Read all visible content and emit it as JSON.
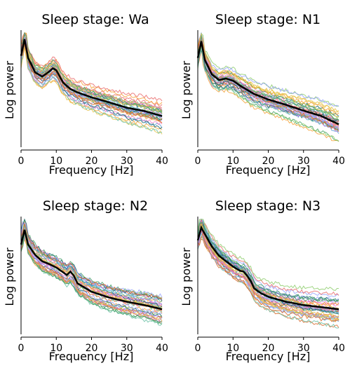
{
  "figure": {
    "colors": [
      "#f4a23a",
      "#5aa0d8",
      "#ea6f6f",
      "#b97fe0",
      "#8fce6f",
      "#f27fc4",
      "#1f6b73",
      "#6fc3a8",
      "#e6c34a",
      "#9aa6ff",
      "#d96a2b",
      "#48a36a"
    ]
  },
  "chart_data": [
    {
      "type": "line",
      "title": "Sleep stage: Wa",
      "xlabel": "Frequency [Hz]",
      "ylabel": "Log power",
      "xlim": [
        0,
        40
      ],
      "ylim": [
        -1.7,
        1.05
      ],
      "xticks": [
        0,
        10,
        20,
        30,
        40
      ],
      "yticks_visible": false,
      "grid": false,
      "series": [
        {
          "x": [
            0,
            1,
            2,
            4,
            6,
            8,
            9,
            10,
            12,
            14,
            16,
            20,
            25,
            30,
            35,
            40
          ],
          "values": [
            0.5,
            0.9,
            0.45,
            0.1,
            0.0,
            0.12,
            0.2,
            0.15,
            -0.15,
            -0.3,
            -0.38,
            -0.5,
            -0.62,
            -0.75,
            -0.83,
            -0.95
          ],
          "color": "#000000"
        }
      ]
    },
    {
      "type": "line",
      "title": "Sleep stage: N1",
      "xlabel": "Frequency [Hz]",
      "ylabel": "Log power",
      "xlim": [
        0,
        40
      ],
      "ylim": [
        -1.7,
        1.05
      ],
      "xticks": [
        0,
        10,
        20,
        30,
        40
      ],
      "yticks_visible": false,
      "grid": false,
      "series": [
        {
          "x": [
            0,
            1,
            2,
            4,
            6,
            8,
            10,
            12,
            14,
            16,
            20,
            25,
            30,
            35,
            40
          ],
          "values": [
            0.45,
            0.85,
            0.4,
            0.05,
            -0.08,
            -0.05,
            -0.1,
            -0.22,
            -0.32,
            -0.42,
            -0.55,
            -0.68,
            -0.82,
            -0.95,
            -1.15
          ],
          "color": "#000000"
        }
      ]
    },
    {
      "type": "line",
      "title": "Sleep stage: N2",
      "xlabel": "Frequency [Hz]",
      "ylabel": "Log power",
      "xlim": [
        0,
        40
      ],
      "ylim": [
        -1.7,
        1.05
      ],
      "xticks": [
        0,
        10,
        20,
        30,
        40
      ],
      "yticks_visible": false,
      "grid": false,
      "series": [
        {
          "x": [
            0,
            1,
            2,
            4,
            6,
            8,
            10,
            12,
            13,
            14,
            15,
            16,
            18,
            20,
            25,
            30,
            35,
            40
          ],
          "values": [
            0.45,
            0.8,
            0.45,
            0.2,
            0.05,
            -0.02,
            -0.1,
            -0.22,
            -0.28,
            -0.2,
            -0.3,
            -0.48,
            -0.58,
            -0.68,
            -0.82,
            -0.92,
            -1.0,
            -1.1
          ],
          "color": "#000000"
        }
      ]
    },
    {
      "type": "line",
      "title": "Sleep stage: N3",
      "xlabel": "Frequency [Hz]",
      "ylabel": "Log power",
      "xlim": [
        0,
        40
      ],
      "ylim": [
        -1.7,
        1.05
      ],
      "xticks": [
        0,
        10,
        20,
        30,
        40
      ],
      "yticks_visible": false,
      "grid": false,
      "series": [
        {
          "x": [
            0,
            1,
            2,
            4,
            6,
            8,
            10,
            12,
            13,
            14,
            15,
            16,
            18,
            20,
            25,
            30,
            35,
            40
          ],
          "values": [
            0.55,
            0.85,
            0.7,
            0.4,
            0.18,
            0.05,
            -0.08,
            -0.18,
            -0.2,
            -0.3,
            -0.42,
            -0.6,
            -0.72,
            -0.8,
            -0.92,
            -1.0,
            -1.05,
            -1.1
          ],
          "color": "#000000"
        }
      ]
    }
  ]
}
